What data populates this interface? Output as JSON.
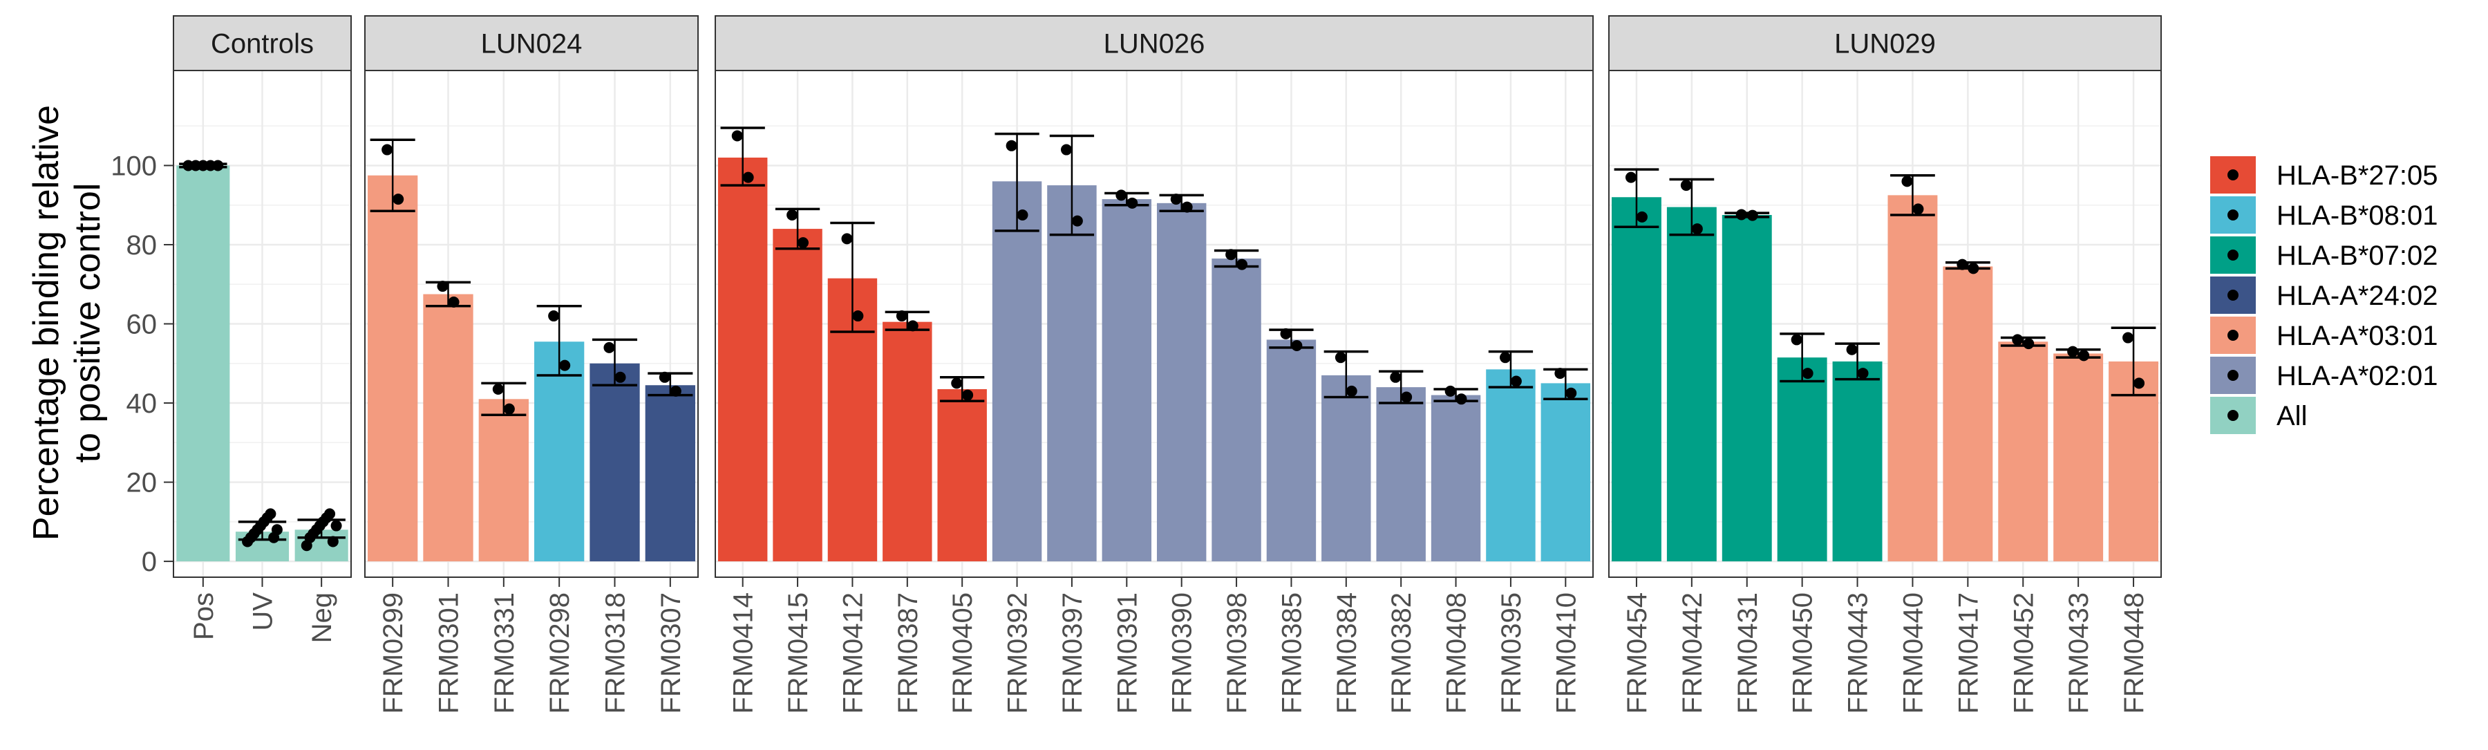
{
  "chart_data": {
    "type": "bar",
    "ylabel_lines": [
      "Percentage binding relative",
      "to positive control"
    ],
    "xlabel": "",
    "ylim": [
      -4,
      124
    ],
    "yticks": [
      0,
      20,
      40,
      60,
      80,
      100
    ],
    "grid": true,
    "legend_position": "right",
    "legend": [
      {
        "label": "HLA-B*27:05",
        "color": "#E64B35"
      },
      {
        "label": "HLA-B*08:01",
        "color": "#4DBBD5"
      },
      {
        "label": "HLA-B*07:02",
        "color": "#00A087"
      },
      {
        "label": "HLA-A*24:02",
        "color": "#3C5488"
      },
      {
        "label": "HLA-A*03:01",
        "color": "#F39B7F"
      },
      {
        "label": "HLA-A*02:01",
        "color": "#8491B4"
      },
      {
        "label": "All",
        "color": "#91D1C2"
      }
    ],
    "panels": [
      {
        "title": "Controls",
        "bars": [
          {
            "label": "Pos",
            "allele": "All",
            "value": 100,
            "err": [
              99.6,
              100.4
            ],
            "points": [
              100,
              100,
              100,
              100,
              100
            ]
          },
          {
            "label": "UV",
            "allele": "All",
            "value": 7.5,
            "err": [
              5.5,
              10
            ],
            "points": [
              5,
              6,
              7,
              8,
              9,
              10,
              11,
              12,
              6,
              8
            ]
          },
          {
            "label": "Neg",
            "allele": "All",
            "value": 8,
            "err": [
              6,
              10.5
            ],
            "points": [
              4,
              6,
              7,
              8,
              9,
              10,
              11,
              12,
              5,
              9
            ]
          }
        ]
      },
      {
        "title": "LUN024",
        "bars": [
          {
            "label": "FRM0299",
            "allele": "HLA-A*03:01",
            "value": 97.5,
            "err": [
              88.5,
              106.5
            ],
            "points": [
              104,
              91.5
            ]
          },
          {
            "label": "FRM0301",
            "allele": "HLA-A*03:01",
            "value": 67.5,
            "err": [
              64.5,
              70.5
            ],
            "points": [
              69.5,
              65.5
            ]
          },
          {
            "label": "FRM0331",
            "allele": "HLA-A*03:01",
            "value": 41,
            "err": [
              37,
              45
            ],
            "points": [
              43.5,
              38.5
            ]
          },
          {
            "label": "FRM0298",
            "allele": "HLA-B*08:01",
            "value": 55.5,
            "err": [
              47,
              64.5
            ],
            "points": [
              62,
              49.5
            ]
          },
          {
            "label": "FRM0318",
            "allele": "HLA-A*24:02",
            "value": 50,
            "err": [
              44.5,
              56
            ],
            "points": [
              54,
              46.5
            ]
          },
          {
            "label": "FRM0307",
            "allele": "HLA-A*24:02",
            "value": 44.5,
            "err": [
              42,
              47.5
            ],
            "points": [
              46.5,
              43
            ]
          }
        ]
      },
      {
        "title": "LUN026",
        "bars": [
          {
            "label": "FRM0414",
            "allele": "HLA-B*27:05",
            "value": 102,
            "err": [
              95,
              109.5
            ],
            "points": [
              107.5,
              97
            ]
          },
          {
            "label": "FRM0415",
            "allele": "HLA-B*27:05",
            "value": 84,
            "err": [
              79,
              89
            ],
            "points": [
              87.5,
              80.5
            ]
          },
          {
            "label": "FRM0412",
            "allele": "HLA-B*27:05",
            "value": 71.5,
            "err": [
              58,
              85.5
            ],
            "points": [
              81.5,
              62
            ]
          },
          {
            "label": "FRM0387",
            "allele": "HLA-B*27:05",
            "value": 60.5,
            "err": [
              58.5,
              63
            ],
            "points": [
              62,
              59.5
            ]
          },
          {
            "label": "FRM0405",
            "allele": "HLA-B*27:05",
            "value": 43.5,
            "err": [
              40.5,
              46.5
            ],
            "points": [
              45,
              42
            ]
          },
          {
            "label": "FRM0392",
            "allele": "HLA-A*02:01",
            "value": 96,
            "err": [
              83.5,
              108
            ],
            "points": [
              105,
              87.5
            ]
          },
          {
            "label": "FRM0397",
            "allele": "HLA-A*02:01",
            "value": 95,
            "err": [
              82.5,
              107.5
            ],
            "points": [
              104,
              86
            ]
          },
          {
            "label": "FRM0391",
            "allele": "HLA-A*02:01",
            "value": 91.5,
            "err": [
              90,
              93
            ],
            "points": [
              92.5,
              90.5
            ]
          },
          {
            "label": "FRM0390",
            "allele": "HLA-A*02:01",
            "value": 90.5,
            "err": [
              88.5,
              92.5
            ],
            "points": [
              91.5,
              89.5
            ]
          },
          {
            "label": "FRM0398",
            "allele": "HLA-A*02:01",
            "value": 76.5,
            "err": [
              74.5,
              78.5
            ],
            "points": [
              77.5,
              75
            ]
          },
          {
            "label": "FRM0385",
            "allele": "HLA-A*02:01",
            "value": 56,
            "err": [
              54,
              58.5
            ],
            "points": [
              57.5,
              54.5
            ]
          },
          {
            "label": "FRM0384",
            "allele": "HLA-A*02:01",
            "value": 47,
            "err": [
              41.5,
              53
            ],
            "points": [
              51.5,
              43
            ]
          },
          {
            "label": "FRM0382",
            "allele": "HLA-A*02:01",
            "value": 44,
            "err": [
              40,
              48
            ],
            "points": [
              46.5,
              41.5
            ]
          },
          {
            "label": "FRM0408",
            "allele": "HLA-A*02:01",
            "value": 42,
            "err": [
              40.5,
              43.5
            ],
            "points": [
              43,
              41
            ]
          },
          {
            "label": "FRM0395",
            "allele": "HLA-B*08:01",
            "value": 48.5,
            "err": [
              44,
              53
            ],
            "points": [
              51.5,
              45.5
            ]
          },
          {
            "label": "FRM0410",
            "allele": "HLA-B*08:01",
            "value": 45,
            "err": [
              41,
              48.5
            ],
            "points": [
              47.5,
              42.5
            ]
          }
        ]
      },
      {
        "title": "LUN029",
        "bars": [
          {
            "label": "FRM0454",
            "allele": "HLA-B*07:02",
            "value": 92,
            "err": [
              84.5,
              99
            ],
            "points": [
              97,
              87
            ]
          },
          {
            "label": "FRM0442",
            "allele": "HLA-B*07:02",
            "value": 89.5,
            "err": [
              82.5,
              96.5
            ],
            "points": [
              95,
              84
            ]
          },
          {
            "label": "FRM0431",
            "allele": "HLA-B*07:02",
            "value": 87.5,
            "err": [
              87,
              88
            ],
            "points": [
              87.6,
              87.4
            ]
          },
          {
            "label": "FRM0450",
            "allele": "HLA-B*07:02",
            "value": 51.5,
            "err": [
              45.5,
              57.5
            ],
            "points": [
              56,
              47.5
            ]
          },
          {
            "label": "FRM0443",
            "allele": "HLA-B*07:02",
            "value": 50.5,
            "err": [
              46,
              55
            ],
            "points": [
              53.5,
              47.5
            ]
          },
          {
            "label": "FRM0440",
            "allele": "HLA-A*03:01",
            "value": 92.5,
            "err": [
              87.5,
              97.5
            ],
            "points": [
              96,
              89
            ]
          },
          {
            "label": "FRM0417",
            "allele": "HLA-A*03:01",
            "value": 74.5,
            "err": [
              74,
              75.5
            ],
            "points": [
              75,
              74
            ]
          },
          {
            "label": "FRM0452",
            "allele": "HLA-A*03:01",
            "value": 55.5,
            "err": [
              54.5,
              56.5
            ],
            "points": [
              56,
              55
            ]
          },
          {
            "label": "FRM0433",
            "allele": "HLA-A*03:01",
            "value": 52.5,
            "err": [
              51.5,
              53.5
            ],
            "points": [
              53,
              52
            ]
          },
          {
            "label": "FRM0448",
            "allele": "HLA-A*03:01",
            "value": 50.5,
            "err": [
              42,
              59
            ],
            "points": [
              56.5,
              45
            ]
          }
        ]
      }
    ]
  }
}
